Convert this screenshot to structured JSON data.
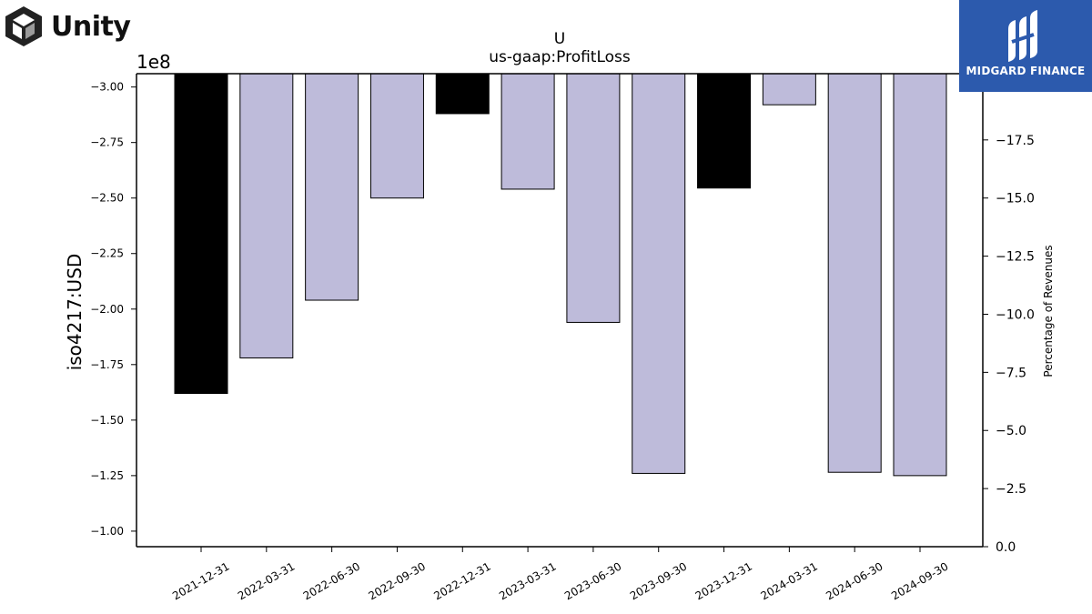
{
  "header": {
    "company_logo_text": "Unity",
    "brand_logo_text": "MIDGARD FINANCE"
  },
  "colors": {
    "bar_highlight": "#000000",
    "bar_default": "#bebbda",
    "brand_bg": "#2c5aad",
    "axis": "#000000"
  },
  "chart_data": {
    "type": "bar",
    "title": "U",
    "subtitle": "us-gaap:ProfitLoss",
    "ylabel": "iso4217:USD",
    "ylabel_right": "Percentage of Revenues",
    "y_offset_label": "1e8",
    "categories": [
      "2021-12-31",
      "2022-03-31",
      "2022-06-30",
      "2022-09-30",
      "2022-12-31",
      "2023-03-31",
      "2023-06-30",
      "2023-09-30",
      "2023-12-31",
      "2024-03-31",
      "2024-06-30",
      "2024-09-30"
    ],
    "values": [
      -1.62,
      -1.78,
      -2.04,
      -2.5,
      -2.88,
      -2.54,
      -1.94,
      -1.26,
      -2.545,
      -2.92,
      -1.265,
      -1.25
    ],
    "highlight": [
      true,
      false,
      false,
      false,
      true,
      false,
      false,
      false,
      true,
      false,
      false,
      false
    ],
    "ylim": [
      -3.06,
      -0.93
    ],
    "yticks": [
      -1.0,
      -1.25,
      -1.5,
      -1.75,
      -2.0,
      -2.25,
      -2.5,
      -2.75,
      -3.0
    ],
    "ytick_labels": [
      "−1.00",
      "−1.25",
      "−1.50",
      "−1.75",
      "−2.00",
      "−2.25",
      "−2.50",
      "−2.75",
      "−3.00"
    ],
    "y2lim": [
      0.0,
      -20.35
    ],
    "y2ticks": [
      0.0,
      -2.5,
      -5.0,
      -7.5,
      -10.0,
      -12.5,
      -15.0,
      -17.5
    ],
    "y2tick_labels": [
      "0.0",
      "−2.5",
      "−5.0",
      "−7.5",
      "−10.0",
      "−12.5",
      "−15.0",
      "−17.5"
    ],
    "grid": false,
    "legend": "none"
  }
}
